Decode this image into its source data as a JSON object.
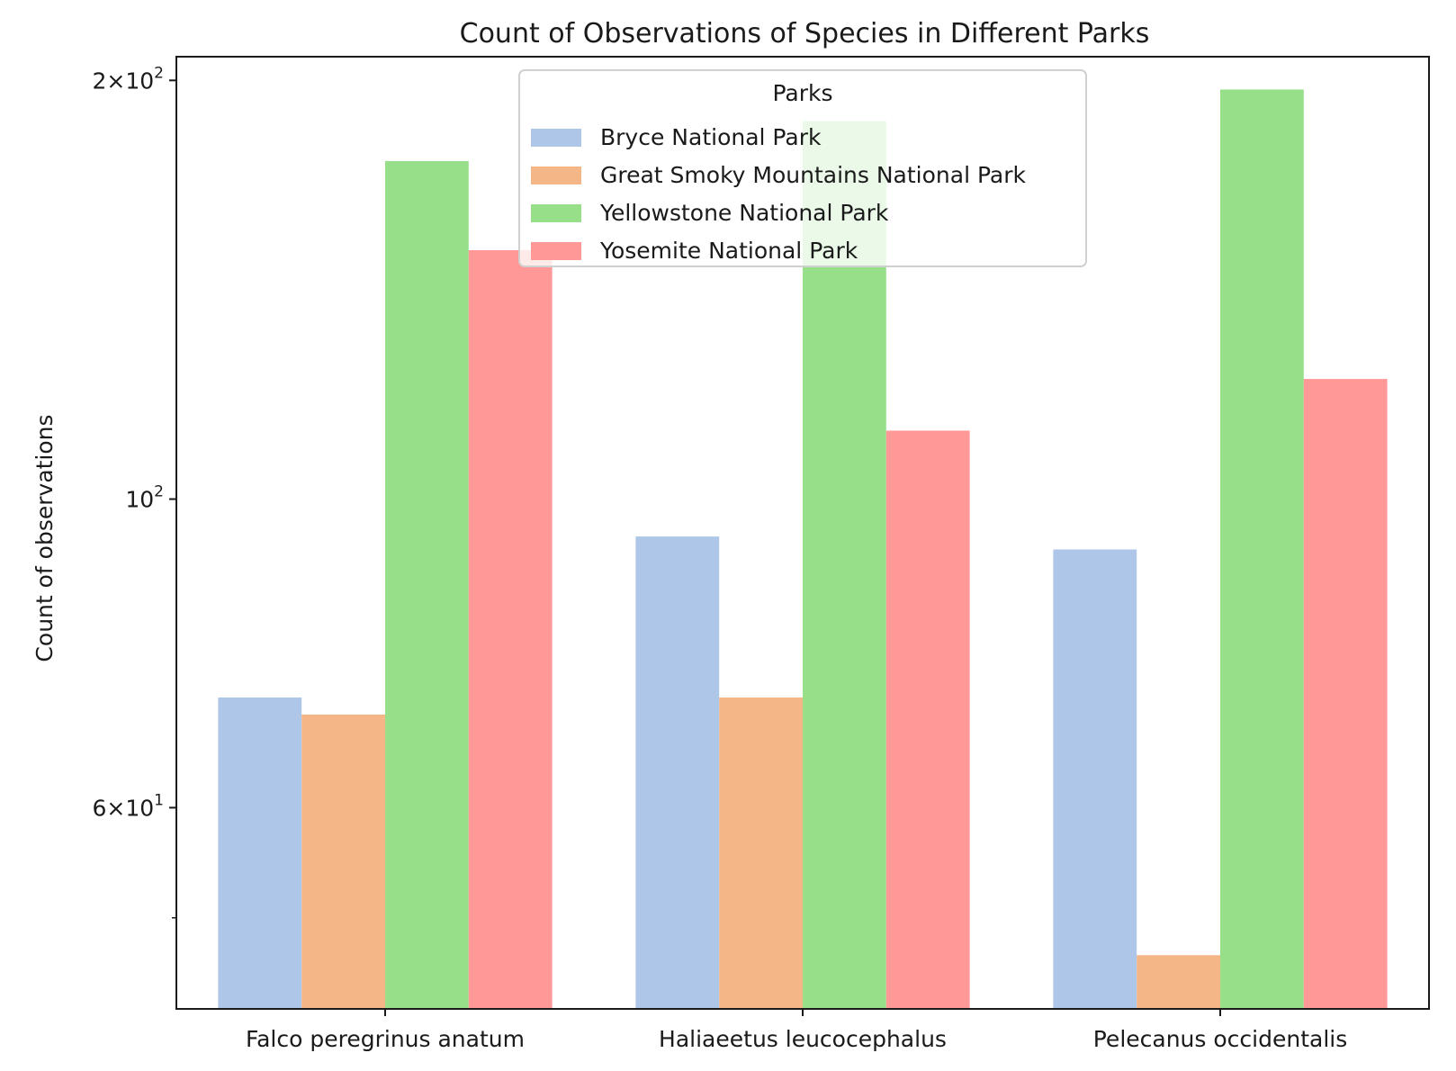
{
  "chart_data": {
    "type": "bar",
    "title": "Count of Observations of Species in Different Parks",
    "xlabel": "",
    "ylabel": "Count of observations",
    "yscale": "log",
    "ylim": [
      43,
      208
    ],
    "yticks": [
      {
        "value": 60,
        "base": "6",
        "exp": "1"
      },
      {
        "value": 100,
        "base": "",
        "exp": "2"
      },
      {
        "value": 200,
        "base": "2",
        "exp": "2"
      }
    ],
    "categories": [
      "Falco peregrinus anatum",
      "Haliaeetus leucocephalus",
      "Pelecanus occidentalis"
    ],
    "legend": {
      "title": "Parks",
      "position": "top-center"
    },
    "series": [
      {
        "name": "Bryce National Park",
        "color": "#aec7e8",
        "values": [
          72,
          94,
          92
        ]
      },
      {
        "name": "Great Smoky Mountains National Park",
        "color": "#f4b587",
        "values": [
          70,
          72,
          47
        ]
      },
      {
        "name": "Yellowstone National Park",
        "color": "#98df8a",
        "values": [
          175,
          187,
          197
        ]
      },
      {
        "name": "Yosemite National Park",
        "color": "#ff9896",
        "values": [
          151,
          112,
          122
        ]
      }
    ],
    "grid": false
  }
}
